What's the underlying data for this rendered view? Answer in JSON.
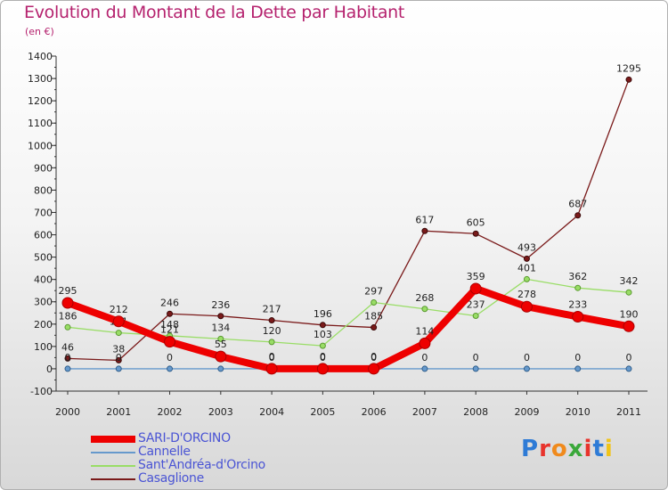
{
  "title": "Evolution du Montant de la Dette par Habitant",
  "subtitle": "(en €)",
  "logo_text": "Proxiti",
  "chart_data": {
    "type": "line",
    "title": "Evolution du Montant de la Dette par Habitant",
    "subtitle": "(en €)",
    "x": [
      "2000",
      "2001",
      "2002",
      "2003",
      "2004",
      "2005",
      "2006",
      "2007",
      "2008",
      "2009",
      "2010",
      "2011"
    ],
    "ylim": [
      -100,
      1400
    ],
    "yticks": [
      -100,
      0,
      100,
      200,
      300,
      400,
      500,
      600,
      700,
      800,
      900,
      1000,
      1100,
      1200,
      1300,
      1400
    ],
    "grid": false,
    "legend_position": "bottom-left",
    "series": [
      {
        "name": "Casaglione",
        "color": "#7a1a1a",
        "values": [
          46,
          38,
          246,
          236,
          217,
          196,
          185,
          617,
          605,
          493,
          687,
          1295
        ]
      },
      {
        "name": "Sant'Andréa-d'Orcino",
        "color": "#99dd66",
        "values": [
          186,
          161,
          148,
          134,
          120,
          103,
          297,
          268,
          237,
          401,
          362,
          342
        ]
      },
      {
        "name": "Cannelle",
        "color": "#6699cc",
        "values": [
          0,
          0,
          0,
          0,
          0,
          0,
          0,
          0,
          0,
          0,
          0,
          0
        ]
      },
      {
        "name": "SARI-D'ORCINO",
        "color": "#ee0000",
        "values": [
          295,
          212,
          121,
          55,
          0,
          0,
          0,
          114,
          359,
          278,
          233,
          190
        ]
      }
    ],
    "legend": [
      "SARI-D'ORCINO",
      "Cannelle",
      "Sant'Andréa-d'Orcino",
      "Casaglione"
    ]
  }
}
